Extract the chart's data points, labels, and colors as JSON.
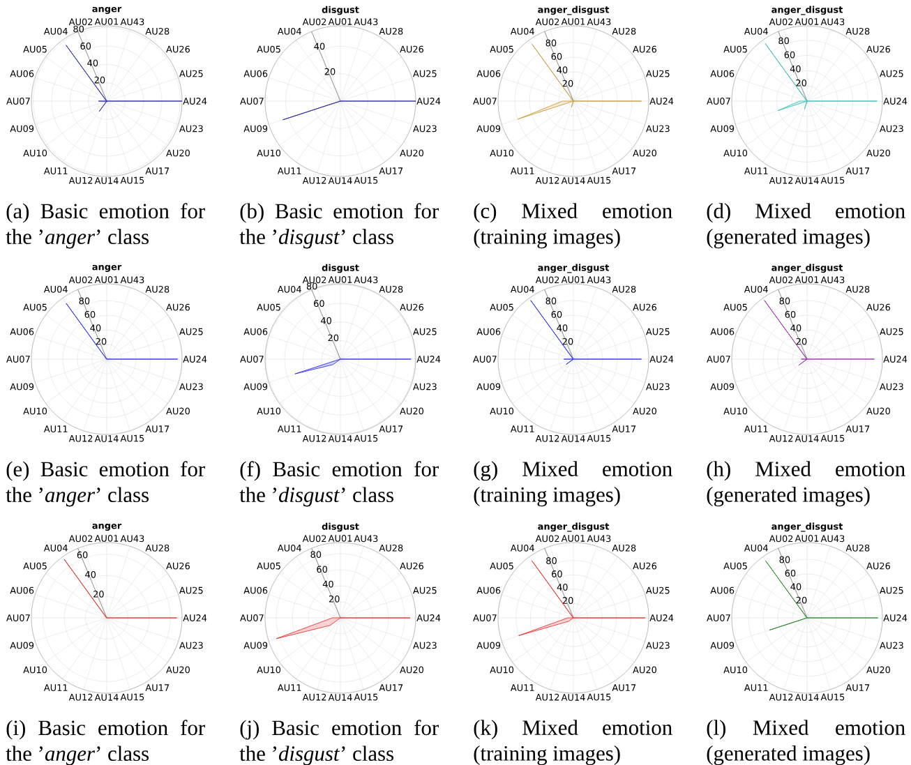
{
  "chart_data": [
    {
      "type": "radar",
      "title": "anger",
      "categories": [
        "AU01",
        "AU43",
        "AU28",
        "AU26",
        "AU25",
        "AU24",
        "AU23",
        "AU20",
        "AU17",
        "AU15",
        "AU14",
        "AU12",
        "AU11",
        "AU10",
        "AU09",
        "AU07",
        "AU06",
        "AU05",
        "AU04",
        "AU02"
      ],
      "series": [
        {
          "color": "#2b2ba3",
          "values": [
            0,
            0,
            0,
            0,
            0,
            82,
            0,
            0,
            0,
            0,
            0,
            0,
            14,
            0,
            0,
            9,
            0,
            0,
            75,
            0
          ]
        }
      ],
      "ylim": [
        0,
        82
      ],
      "yticks": [
        20,
        40,
        60,
        80
      ],
      "grid": true,
      "annotations": [
        "(a) Basic emotion for the ’*anger*’ class"
      ]
    },
    {
      "type": "radar",
      "title": "disgust",
      "categories": [
        "AU01",
        "AU43",
        "AU28",
        "AU26",
        "AU25",
        "AU24",
        "AU23",
        "AU20",
        "AU17",
        "AU15",
        "AU14",
        "AU12",
        "AU11",
        "AU10",
        "AU09",
        "AU07",
        "AU06",
        "AU05",
        "AU04",
        "AU02"
      ],
      "series": [
        {
          "color": "#2b2ba3",
          "values": [
            0,
            0,
            0,
            0,
            0,
            55,
            0,
            0,
            0,
            0,
            0,
            0,
            0,
            0,
            44,
            0,
            0,
            0,
            0,
            0
          ]
        }
      ],
      "ylim": [
        0,
        55
      ],
      "yticks": [
        20,
        40
      ],
      "grid": true,
      "annotations": [
        "(b) Basic emotion for the ’*disgust*’ class"
      ]
    },
    {
      "type": "radar",
      "title": "anger_disgust",
      "categories": [
        "AU01",
        "AU43",
        "AU28",
        "AU26",
        "AU25",
        "AU24",
        "AU23",
        "AU20",
        "AU17",
        "AU15",
        "AU14",
        "AU12",
        "AU11",
        "AU10",
        "AU09",
        "AU07",
        "AU06",
        "AU05",
        "AU04",
        "AU02"
      ],
      "series": [
        {
          "color": "#c9a040",
          "values": [
            0,
            0,
            0,
            0,
            0,
            93,
            0,
            0,
            0,
            0,
            0,
            9,
            0,
            0,
            80,
            15,
            0,
            0,
            96,
            0
          ]
        }
      ],
      "ylim": [
        0,
        103
      ],
      "yticks": [
        20,
        40,
        60,
        80
      ],
      "grid": true,
      "annotations": [
        "(c) Mixed emotion (training images)"
      ]
    },
    {
      "type": "radar",
      "title": "anger_disgust",
      "categories": [
        "AU01",
        "AU43",
        "AU28",
        "AU26",
        "AU25",
        "AU24",
        "AU23",
        "AU20",
        "AU17",
        "AU15",
        "AU14",
        "AU12",
        "AU11",
        "AU10",
        "AU09",
        "AU07",
        "AU06",
        "AU05",
        "AU04",
        "AU02"
      ],
      "series": [
        {
          "color": "#3fbfb8",
          "values": [
            0,
            0,
            0,
            0,
            0,
            92,
            0,
            0,
            0,
            0,
            0,
            11,
            0,
            0,
            40,
            10,
            0,
            0,
            93,
            0
          ]
        }
      ],
      "ylim": [
        0,
        99
      ],
      "yticks": [
        20,
        40,
        60,
        80
      ],
      "grid": true,
      "annotations": [
        "(d) Mixed emotion (generated images)"
      ]
    },
    {
      "type": "radar",
      "title": "anger",
      "categories": [
        "AU01",
        "AU43",
        "AU28",
        "AU26",
        "AU25",
        "AU24",
        "AU23",
        "AU20",
        "AU17",
        "AU15",
        "AU14",
        "AU12",
        "AU11",
        "AU10",
        "AU09",
        "AU07",
        "AU06",
        "AU05",
        "AU04",
        "AU02"
      ],
      "series": [
        {
          "color": "#2f2ff5",
          "values": [
            0,
            0,
            0,
            0,
            0,
            97,
            0,
            0,
            0,
            0,
            0,
            0,
            0,
            0,
            0,
            0,
            0,
            0,
            94,
            0
          ]
        }
      ],
      "ylim": [
        0,
        103
      ],
      "yticks": [
        20,
        40,
        60,
        80
      ],
      "grid": true,
      "annotations": [
        "(e) Basic emotion for the ’*anger*’ class"
      ]
    },
    {
      "type": "radar",
      "title": "disgust",
      "categories": [
        "AU01",
        "AU43",
        "AU28",
        "AU26",
        "AU25",
        "AU24",
        "AU23",
        "AU20",
        "AU17",
        "AU15",
        "AU14",
        "AU12",
        "AU11",
        "AU10",
        "AU09",
        "AU07",
        "AU06",
        "AU05",
        "AU04",
        "AU02"
      ],
      "series": [
        {
          "color": "#2f2ff5",
          "values": [
            0,
            0,
            0,
            0,
            0,
            76,
            0,
            0,
            0,
            0,
            0,
            0,
            0,
            10,
            51,
            0,
            0,
            0,
            0,
            0
          ]
        }
      ],
      "ylim": [
        0,
        81
      ],
      "yticks": [
        20,
        40,
        60,
        80
      ],
      "grid": true,
      "annotations": [
        "(f) Basic emotion for the ’*disgust*’ class"
      ]
    },
    {
      "type": "radar",
      "title": "anger_disgust",
      "categories": [
        "AU01",
        "AU43",
        "AU28",
        "AU26",
        "AU25",
        "AU24",
        "AU23",
        "AU20",
        "AU17",
        "AU15",
        "AU14",
        "AU12",
        "AU11",
        "AU10",
        "AU09",
        "AU07",
        "AU06",
        "AU05",
        "AU04",
        "AU02"
      ],
      "series": [
        {
          "color": "#2f2ff5",
          "values": [
            0,
            0,
            0,
            0,
            0,
            93,
            0,
            0,
            0,
            0,
            0,
            0,
            0,
            12,
            0,
            13,
            0,
            0,
            99,
            0
          ]
        }
      ],
      "ylim": [
        0,
        103
      ],
      "yticks": [
        20,
        40,
        60,
        80
      ],
      "grid": true,
      "annotations": [
        "(g) Mixed emotion (training images)"
      ]
    },
    {
      "type": "radar",
      "title": "anger_disgust",
      "categories": [
        "AU01",
        "AU43",
        "AU28",
        "AU26",
        "AU25",
        "AU24",
        "AU23",
        "AU20",
        "AU17",
        "AU15",
        "AU14",
        "AU12",
        "AU11",
        "AU10",
        "AU09",
        "AU07",
        "AU06",
        "AU05",
        "AU04",
        "AU02"
      ],
      "series": [
        {
          "color": "#9a32a8",
          "values": [
            0,
            0,
            0,
            0,
            0,
            92,
            0,
            0,
            0,
            0,
            0,
            0,
            0,
            14,
            0,
            8,
            0,
            0,
            99,
            0
          ]
        }
      ],
      "ylim": [
        0,
        103
      ],
      "yticks": [
        20,
        40,
        60,
        80
      ],
      "grid": true,
      "annotations": [
        "(h) Mixed emotion (generated images)"
      ]
    },
    {
      "type": "radar",
      "title": "anger",
      "categories": [
        "AU01",
        "AU43",
        "AU28",
        "AU26",
        "AU25",
        "AU24",
        "AU23",
        "AU20",
        "AU17",
        "AU15",
        "AU14",
        "AU12",
        "AU11",
        "AU10",
        "AU09",
        "AU07",
        "AU06",
        "AU05",
        "AU04",
        "AU02"
      ],
      "series": [
        {
          "color": "#e83232",
          "values": [
            0,
            0,
            0,
            0,
            0,
            66,
            0,
            0,
            0,
            0,
            0,
            0,
            0,
            0,
            0,
            0,
            0,
            0,
            68,
            0
          ]
        }
      ],
      "ylim": [
        0,
        71
      ],
      "yticks": [
        20,
        40,
        60
      ],
      "grid": true,
      "annotations": [
        "(i) Basic emotion for the ’*anger*’ class"
      ]
    },
    {
      "type": "radar",
      "title": "disgust",
      "categories": [
        "AU01",
        "AU43",
        "AU28",
        "AU26",
        "AU25",
        "AU24",
        "AU23",
        "AU20",
        "AU17",
        "AU15",
        "AU14",
        "AU12",
        "AU11",
        "AU10",
        "AU09",
        "AU07",
        "AU06",
        "AU05",
        "AU04",
        "AU02"
      ],
      "series": [
        {
          "color": "#e83232",
          "values": [
            0,
            0,
            0,
            0,
            0,
            87,
            0,
            0,
            0,
            0,
            0,
            0,
            0,
            16,
            84,
            10,
            0,
            0,
            0,
            0
          ]
        }
      ],
      "ylim": [
        0,
        94
      ],
      "yticks": [
        20,
        40,
        60,
        80
      ],
      "grid": true,
      "annotations": [
        "(j) Basic emotion for the ’*disgust*’ class"
      ]
    },
    {
      "type": "radar",
      "title": "anger_disgust",
      "categories": [
        "AU01",
        "AU43",
        "AU28",
        "AU26",
        "AU25",
        "AU24",
        "AU23",
        "AU20",
        "AU17",
        "AU15",
        "AU14",
        "AU12",
        "AU11",
        "AU10",
        "AU09",
        "AU07",
        "AU06",
        "AU05",
        "AU04",
        "AU02"
      ],
      "series": [
        {
          "color": "#e83232",
          "values": [
            0,
            0,
            0,
            0,
            0,
            100,
            0,
            0,
            0,
            0,
            0,
            0,
            0,
            8,
            80,
            8,
            0,
            0,
            98,
            0
          ]
        }
      ],
      "ylim": [
        0,
        105
      ],
      "yticks": [
        20,
        40,
        60,
        80
      ],
      "grid": true,
      "annotations": [
        "(k) Mixed emotion (training images)"
      ]
    },
    {
      "type": "radar",
      "title": "anger_disgust",
      "categories": [
        "AU01",
        "AU43",
        "AU28",
        "AU26",
        "AU25",
        "AU24",
        "AU23",
        "AU20",
        "AU17",
        "AU15",
        "AU14",
        "AU12",
        "AU11",
        "AU10",
        "AU09",
        "AU07",
        "AU06",
        "AU05",
        "AU04",
        "AU02"
      ],
      "series": [
        {
          "color": "#2e8b2e",
          "values": [
            0,
            0,
            0,
            0,
            0,
            97,
            0,
            0,
            0,
            0,
            0,
            0,
            0,
            0,
            54,
            0,
            0,
            0,
            96,
            0
          ]
        }
      ],
      "ylim": [
        0,
        103
      ],
      "yticks": [
        20,
        40,
        60,
        80
      ],
      "grid": true,
      "annotations": [
        "(l) Mixed emotion (generated images)"
      ]
    }
  ]
}
